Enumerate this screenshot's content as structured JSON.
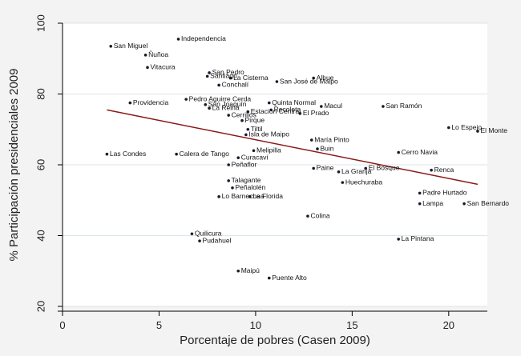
{
  "chart_data": {
    "type": "scatter",
    "xlabel": "Porcentaje de pobres (Casen 2009)",
    "ylabel": "% Participación presidenciales 2009",
    "xlim": [
      0,
      22
    ],
    "ylim": [
      20,
      100
    ],
    "xticks": [
      0,
      5,
      10,
      15,
      20
    ],
    "yticks": [
      20,
      40,
      60,
      80,
      100
    ],
    "grid": "horizontal",
    "colors": {
      "plot_background": "#ffffff",
      "outer_background": "#f3f3f3",
      "gridline": "#dde6e9",
      "fit_line": "#8b1a1a",
      "point": "#1a1a2e"
    },
    "fit_line": {
      "x": [
        2.3,
        21.5
      ],
      "y": [
        75.5,
        54.5
      ]
    },
    "points": [
      {
        "label": "San Miguel",
        "x": 2.5,
        "y": 93.5
      },
      {
        "label": "Independencia",
        "x": 6.0,
        "y": 95.5
      },
      {
        "label": "Ñuñoa",
        "x": 4.3,
        "y": 91.0
      },
      {
        "label": "Vitacura",
        "x": 4.4,
        "y": 87.5
      },
      {
        "label": "San Pedro",
        "x": 7.6,
        "y": 86.0
      },
      {
        "label": "Santiago",
        "x": 7.5,
        "y": 85.0
      },
      {
        "label": "La Cisterna",
        "x": 8.7,
        "y": 84.5
      },
      {
        "label": "Conchalí",
        "x": 8.1,
        "y": 82.5
      },
      {
        "label": "Alhue",
        "x": 13.0,
        "y": 84.5
      },
      {
        "label": "San José de Maipo",
        "x": 11.1,
        "y": 83.5
      },
      {
        "label": "Pedro Aguirre Cerda",
        "x": 6.4,
        "y": 78.5
      },
      {
        "label": "Providencia",
        "x": 3.5,
        "y": 77.5
      },
      {
        "label": "San Joaquín",
        "x": 7.4,
        "y": 77.0
      },
      {
        "label": "La Reina",
        "x": 7.6,
        "y": 76.0
      },
      {
        "label": "Quinta Normal",
        "x": 10.7,
        "y": 77.5
      },
      {
        "label": "Macul",
        "x": 13.4,
        "y": 76.5
      },
      {
        "label": "San Ramón",
        "x": 16.6,
        "y": 76.5
      },
      {
        "label": "Estación Central",
        "x": 9.6,
        "y": 75.0
      },
      {
        "label": "Recoleta",
        "x": 10.8,
        "y": 75.5
      },
      {
        "label": "El Prado",
        "x": 12.3,
        "y": 74.5
      },
      {
        "label": "Cerrillos",
        "x": 8.6,
        "y": 74.0
      },
      {
        "label": "Pirque",
        "x": 9.3,
        "y": 72.5
      },
      {
        "label": "Tiltil",
        "x": 9.6,
        "y": 70.0
      },
      {
        "label": "Isla de Maipo",
        "x": 9.5,
        "y": 68.5
      },
      {
        "label": "Lo Espejo",
        "x": 20.0,
        "y": 70.5
      },
      {
        "label": "El Monte",
        "x": 21.5,
        "y": 69.5
      },
      {
        "label": "María Pinto",
        "x": 12.9,
        "y": 67.0
      },
      {
        "label": "Buin",
        "x": 13.2,
        "y": 64.5
      },
      {
        "label": "Las Condes",
        "x": 2.3,
        "y": 63.0
      },
      {
        "label": "Calera de Tango",
        "x": 5.9,
        "y": 63.0
      },
      {
        "label": "Melipilla",
        "x": 9.9,
        "y": 64.0
      },
      {
        "label": "Cerro Navia",
        "x": 17.4,
        "y": 63.5
      },
      {
        "label": "Curacaví",
        "x": 9.1,
        "y": 62.0
      },
      {
        "label": "Peñaflor",
        "x": 8.6,
        "y": 60.0
      },
      {
        "label": "El Bosque",
        "x": 15.7,
        "y": 59.0
      },
      {
        "label": "Renca",
        "x": 19.1,
        "y": 58.5
      },
      {
        "label": "Paine",
        "x": 13.0,
        "y": 59.0
      },
      {
        "label": "La Granja",
        "x": 14.3,
        "y": 58.0
      },
      {
        "label": "Talagante",
        "x": 8.6,
        "y": 55.5
      },
      {
        "label": "Huechuraba",
        "x": 14.5,
        "y": 55.0
      },
      {
        "label": "Peñalolén",
        "x": 8.8,
        "y": 53.5
      },
      {
        "label": "Lo Barnechea",
        "x": 8.1,
        "y": 51.0
      },
      {
        "label": "La Florida",
        "x": 9.7,
        "y": 51.0
      },
      {
        "label": "Padre Hurtado",
        "x": 18.5,
        "y": 52.0
      },
      {
        "label": "Lampa",
        "x": 18.5,
        "y": 49.0
      },
      {
        "label": "San Bernardo",
        "x": 20.8,
        "y": 49.0
      },
      {
        "label": "Colina",
        "x": 12.7,
        "y": 45.5
      },
      {
        "label": "Quilicura",
        "x": 6.7,
        "y": 40.5
      },
      {
        "label": "Pudahuel",
        "x": 7.1,
        "y": 38.5
      },
      {
        "label": "La Pintana",
        "x": 17.4,
        "y": 39.0
      },
      {
        "label": "Maipú",
        "x": 9.1,
        "y": 30.0
      },
      {
        "label": "Puente Alto",
        "x": 10.7,
        "y": 28.0
      }
    ]
  }
}
